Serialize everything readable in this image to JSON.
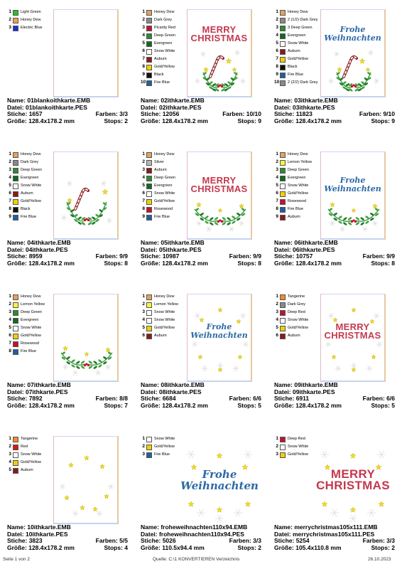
{
  "cells": [
    {
      "name": "Name: 01blankoithkarte.EMB",
      "file": "Datei: 01blankoithkarte.PES",
      "stitches": "Stiche: 1657",
      "colors_count": "Farben: 3/3",
      "size": "Größe: 128.4x178.2 mm",
      "stops": "Stops: 2",
      "colors": [
        {
          "n": "1",
          "label": "Light Green",
          "color": "#27c22a"
        },
        {
          "n": "2",
          "label": "Honey Dew",
          "color": "#e6a15c"
        },
        {
          "n": "3",
          "label": "Electric Blue",
          "color": "#1a2fd6"
        }
      ]
    },
    {
      "name": "Name: 02ithkarte.EMB",
      "file": "Datei: 02ithkarte.PES",
      "stitches": "Stiche: 12056",
      "colors_count": "Farben: 10/10",
      "size": "Größe: 128.4x178.2 mm",
      "stops": "Stops: 9",
      "colors": [
        {
          "n": "1",
          "label": "Honey Dew",
          "color": "#e6a15c"
        },
        {
          "n": "2",
          "label": "Dark Grey",
          "color": "#8a8a8a"
        },
        {
          "n": "3",
          "label": "Picardy Red",
          "color": "#c8102e"
        },
        {
          "n": "4",
          "label": "Deep Green",
          "color": "#2e8b2e"
        },
        {
          "n": "5",
          "label": "Evergreen",
          "color": "#0d6b1f"
        },
        {
          "n": "6",
          "label": "Snow White",
          "color": "#ffffff"
        },
        {
          "n": "7",
          "label": "Auburn",
          "color": "#8b1a1a"
        },
        {
          "n": "8",
          "label": "Gold/Yellow",
          "color": "#f0d000"
        },
        {
          "n": "9",
          "label": "Black",
          "color": "#111111"
        },
        {
          "n": "10",
          "label": "Fire Blue",
          "color": "#1f5fa0"
        }
      ],
      "design_text": "MERRY CHRISTMAS"
    },
    {
      "name": "Name: 03ithkarte.EMB",
      "file": "Datei: 03ithkarte.PES",
      "stitches": "Stiche: 11823",
      "colors_count": "Farben: 9/10",
      "size": "Größe: 128.4x178.2 mm",
      "stops": "Stops: 9",
      "colors": [
        {
          "n": "1",
          "label": "Honey Dew",
          "color": "#e6a15c"
        },
        {
          "n": "2",
          "label": "2 (1/2) Dark Grey",
          "color": "#8a8a8a"
        },
        {
          "n": "3",
          "label": "3 Deep Green",
          "color": "#2e8b2e"
        },
        {
          "n": "4",
          "label": "Evergreen",
          "color": "#0d6b1f"
        },
        {
          "n": "5",
          "label": "Snow White",
          "color": "#ffffff"
        },
        {
          "n": "6",
          "label": "Auburn",
          "color": "#8b1a1a"
        },
        {
          "n": "7",
          "label": "Gold/Yellow",
          "color": "#f0d000"
        },
        {
          "n": "8",
          "label": "Black",
          "color": "#111111"
        },
        {
          "n": "9",
          "label": "Fire Blue",
          "color": "#1f5fa0"
        },
        {
          "n": "10",
          "label": "2 (2/2) Dark Grey",
          "color": "#8a8a8a"
        }
      ],
      "design_text": "Frohe Weihnachten"
    },
    {
      "name": "Name: 04ithkarte.EMB",
      "file": "Datei: 04ithkarte.PES",
      "stitches": "Stiche: 8959",
      "colors_count": "Farben: 9/9",
      "size": "Größe: 128.4x178.2 mm",
      "stops": "Stops: 8",
      "colors": [
        {
          "n": "1",
          "label": "Honey Dew",
          "color": "#e6a15c"
        },
        {
          "n": "2",
          "label": "Dark Grey",
          "color": "#8a8a8a"
        },
        {
          "n": "3",
          "label": "Deep Green",
          "color": "#2e8b2e"
        },
        {
          "n": "4",
          "label": "Evergreen",
          "color": "#0d6b1f"
        },
        {
          "n": "5",
          "label": "Snow White",
          "color": "#ffffff"
        },
        {
          "n": "6",
          "label": "Auburn",
          "color": "#8b1a1a"
        },
        {
          "n": "7",
          "label": "Gold/Yellow",
          "color": "#f0d000"
        },
        {
          "n": "8",
          "label": "Black",
          "color": "#111111"
        },
        {
          "n": "9",
          "label": "Fire Blue",
          "color": "#1f5fa0"
        }
      ]
    },
    {
      "name": "Name: 05ithkarte.EMB",
      "file": "Datei: 05ithkarte.PES",
      "stitches": "Stiche: 10987",
      "colors_count": "Farben: 9/9",
      "size": "Größe: 128.4x178.2 mm",
      "stops": "Stops: 8",
      "colors": [
        {
          "n": "1",
          "label": "Honey Dew",
          "color": "#e6a15c"
        },
        {
          "n": "2",
          "label": "Silver",
          "color": "#b8b8b8"
        },
        {
          "n": "3",
          "label": "Auburn",
          "color": "#8b1a1a"
        },
        {
          "n": "4",
          "label": "Deep Green",
          "color": "#2e8b2e"
        },
        {
          "n": "5",
          "label": "Evergreen",
          "color": "#0d6b1f"
        },
        {
          "n": "6",
          "label": "Snow White",
          "color": "#ffffff"
        },
        {
          "n": "7",
          "label": "Gold/Yellow",
          "color": "#f0d000"
        },
        {
          "n": "8",
          "label": "Rosewood",
          "color": "#c8102e"
        },
        {
          "n": "9",
          "label": "Fire Blue",
          "color": "#1f5fa0"
        }
      ],
      "design_text": "MERRY CHRISTMAS"
    },
    {
      "name": "Name: 06ithkarte.EMB",
      "file": "Datei: 06ithkarte.PES",
      "stitches": "Stiche: 10757",
      "colors_count": "Farben: 9/9",
      "size": "Größe: 128.4x178.2 mm",
      "stops": "Stops: 8",
      "colors": [
        {
          "n": "1",
          "label": "Honey Dew",
          "color": "#e6a15c"
        },
        {
          "n": "2",
          "label": "Lemon Yellow",
          "color": "#fff23a"
        },
        {
          "n": "3",
          "label": "Deep Green",
          "color": "#2e8b2e"
        },
        {
          "n": "4",
          "label": "Evergreen",
          "color": "#0d6b1f"
        },
        {
          "n": "5",
          "label": "Snow White",
          "color": "#ffffff"
        },
        {
          "n": "6",
          "label": "Gold/Yellow",
          "color": "#f0d000"
        },
        {
          "n": "7",
          "label": "Rosewood",
          "color": "#c8102e"
        },
        {
          "n": "8",
          "label": "Fire Blue",
          "color": "#1f5fa0"
        },
        {
          "n": "9",
          "label": "Auburn",
          "color": "#8b1a1a"
        }
      ],
      "design_text": "Frohe Weihnachten"
    },
    {
      "name": "Name: 07ithkarte.EMB",
      "file": "Datei: 07ithkarte.PES",
      "stitches": "Stiche: 7892",
      "colors_count": "Farben: 8/8",
      "size": "Größe: 128.4x178.2 mm",
      "stops": "Stops: 7",
      "colors": [
        {
          "n": "1",
          "label": "Honey Dew",
          "color": "#e6a15c"
        },
        {
          "n": "2",
          "label": "Lemon Yellow",
          "color": "#fff23a"
        },
        {
          "n": "3",
          "label": "Deep Green",
          "color": "#2e8b2e"
        },
        {
          "n": "4",
          "label": "Evergreen",
          "color": "#0d6b1f"
        },
        {
          "n": "5",
          "label": "Snow White",
          "color": "#ffffff"
        },
        {
          "n": "6",
          "label": "Gold/Yellow",
          "color": "#f0d000"
        },
        {
          "n": "7",
          "label": "Rosewood",
          "color": "#c8102e"
        },
        {
          "n": "8",
          "label": "Fire Blue",
          "color": "#1f5fa0"
        }
      ]
    },
    {
      "name": "Name: 08ithkarte.EMB",
      "file": "Datei: 08ithkarte.PES",
      "stitches": "Stiche: 6684",
      "colors_count": "Farben: 6/6",
      "size": "Größe: 128.4x178.2 mm",
      "stops": "Stops: 5",
      "colors": [
        {
          "n": "1",
          "label": "Honey Dew",
          "color": "#e6a15c"
        },
        {
          "n": "2",
          "label": "Lemon Yellow",
          "color": "#fff23a"
        },
        {
          "n": "3",
          "label": "Snow White",
          "color": "#ffffff"
        },
        {
          "n": "4",
          "label": "Snow White",
          "color": "#ffffff"
        },
        {
          "n": "5",
          "label": "Gold/Yellow",
          "color": "#f0d000"
        },
        {
          "n": "6",
          "label": "Auburn",
          "color": "#8b1a1a"
        }
      ],
      "design_text": "Frohe Weihnachten"
    },
    {
      "name": "Name: 09ithkarte.EMB",
      "file": "Datei: 09ithkarte.PES",
      "stitches": "Stiche: 6911",
      "colors_count": "Farben: 6/6",
      "size": "Größe: 128.4x178.2 mm",
      "stops": "Stops: 5",
      "colors": [
        {
          "n": "1",
          "label": "Tangerine",
          "color": "#f08c28"
        },
        {
          "n": "2",
          "label": "Dark Grey",
          "color": "#8a8a8a"
        },
        {
          "n": "3",
          "label": "Deep Red",
          "color": "#c8102e"
        },
        {
          "n": "4",
          "label": "Snow White",
          "color": "#ffffff"
        },
        {
          "n": "5",
          "label": "Gold/Yellow",
          "color": "#f0d000"
        },
        {
          "n": "6",
          "label": "Auburn",
          "color": "#8b1a1a"
        }
      ],
      "design_text": "MERRY CHRISTMAS"
    },
    {
      "name": "Name: 10ithkarte.EMB",
      "file": "Datei: 10ithkarte.PES",
      "stitches": "Stiche: 3823",
      "colors_count": "Farben: 5/5",
      "size": "Größe: 128.4x178.2 mm",
      "stops": "Stops: 4",
      "colors": [
        {
          "n": "1",
          "label": "Tangerine",
          "color": "#f08c28"
        },
        {
          "n": "2",
          "label": "Red",
          "color": "#d81818"
        },
        {
          "n": "3",
          "label": "Snow White",
          "color": "#ffffff"
        },
        {
          "n": "4",
          "label": "Gold/Yellow",
          "color": "#f0d000"
        },
        {
          "n": "5",
          "label": "Auburn",
          "color": "#8b1a1a"
        }
      ]
    },
    {
      "name": "Name: froheweihnachten110x94.EMB",
      "file": "Datei: froheweihnachten110x94.PES",
      "stitches": "Stiche: 5026",
      "colors_count": "Farben: 3/3",
      "size": "Größe: 110.5x94.4 mm",
      "stops": "Stops: 2",
      "colors": [
        {
          "n": "1",
          "label": "Snow White",
          "color": "#ffffff"
        },
        {
          "n": "2",
          "label": "Gold/Yellow",
          "color": "#f0d000"
        },
        {
          "n": "3",
          "label": "Fire Blue",
          "color": "#1f5fa0"
        }
      ],
      "design_text": "Frohe Weihnachten"
    },
    {
      "name": "Name: merrychristmas105x111.EMB",
      "file": "Datei: merrychristmas105x111.PES",
      "stitches": "Stiche: 5254",
      "colors_count": "Farben: 3/3",
      "size": "Größe: 105.4x110.8 mm",
      "stops": "Stops: 2",
      "colors": [
        {
          "n": "1",
          "label": "Deep Red",
          "color": "#c8102e"
        },
        {
          "n": "2",
          "label": "Snow White",
          "color": "#ffffff"
        },
        {
          "n": "3",
          "label": "Gold/Yellow",
          "color": "#f0d000"
        }
      ],
      "design_text": "MERRY CHRISTMAS"
    }
  ],
  "footer": {
    "page": "Seite 1 von 2",
    "source": "Quelle: C:\\1 KONVERTIEREN Verzeichnis",
    "date": "26.10.2023"
  }
}
